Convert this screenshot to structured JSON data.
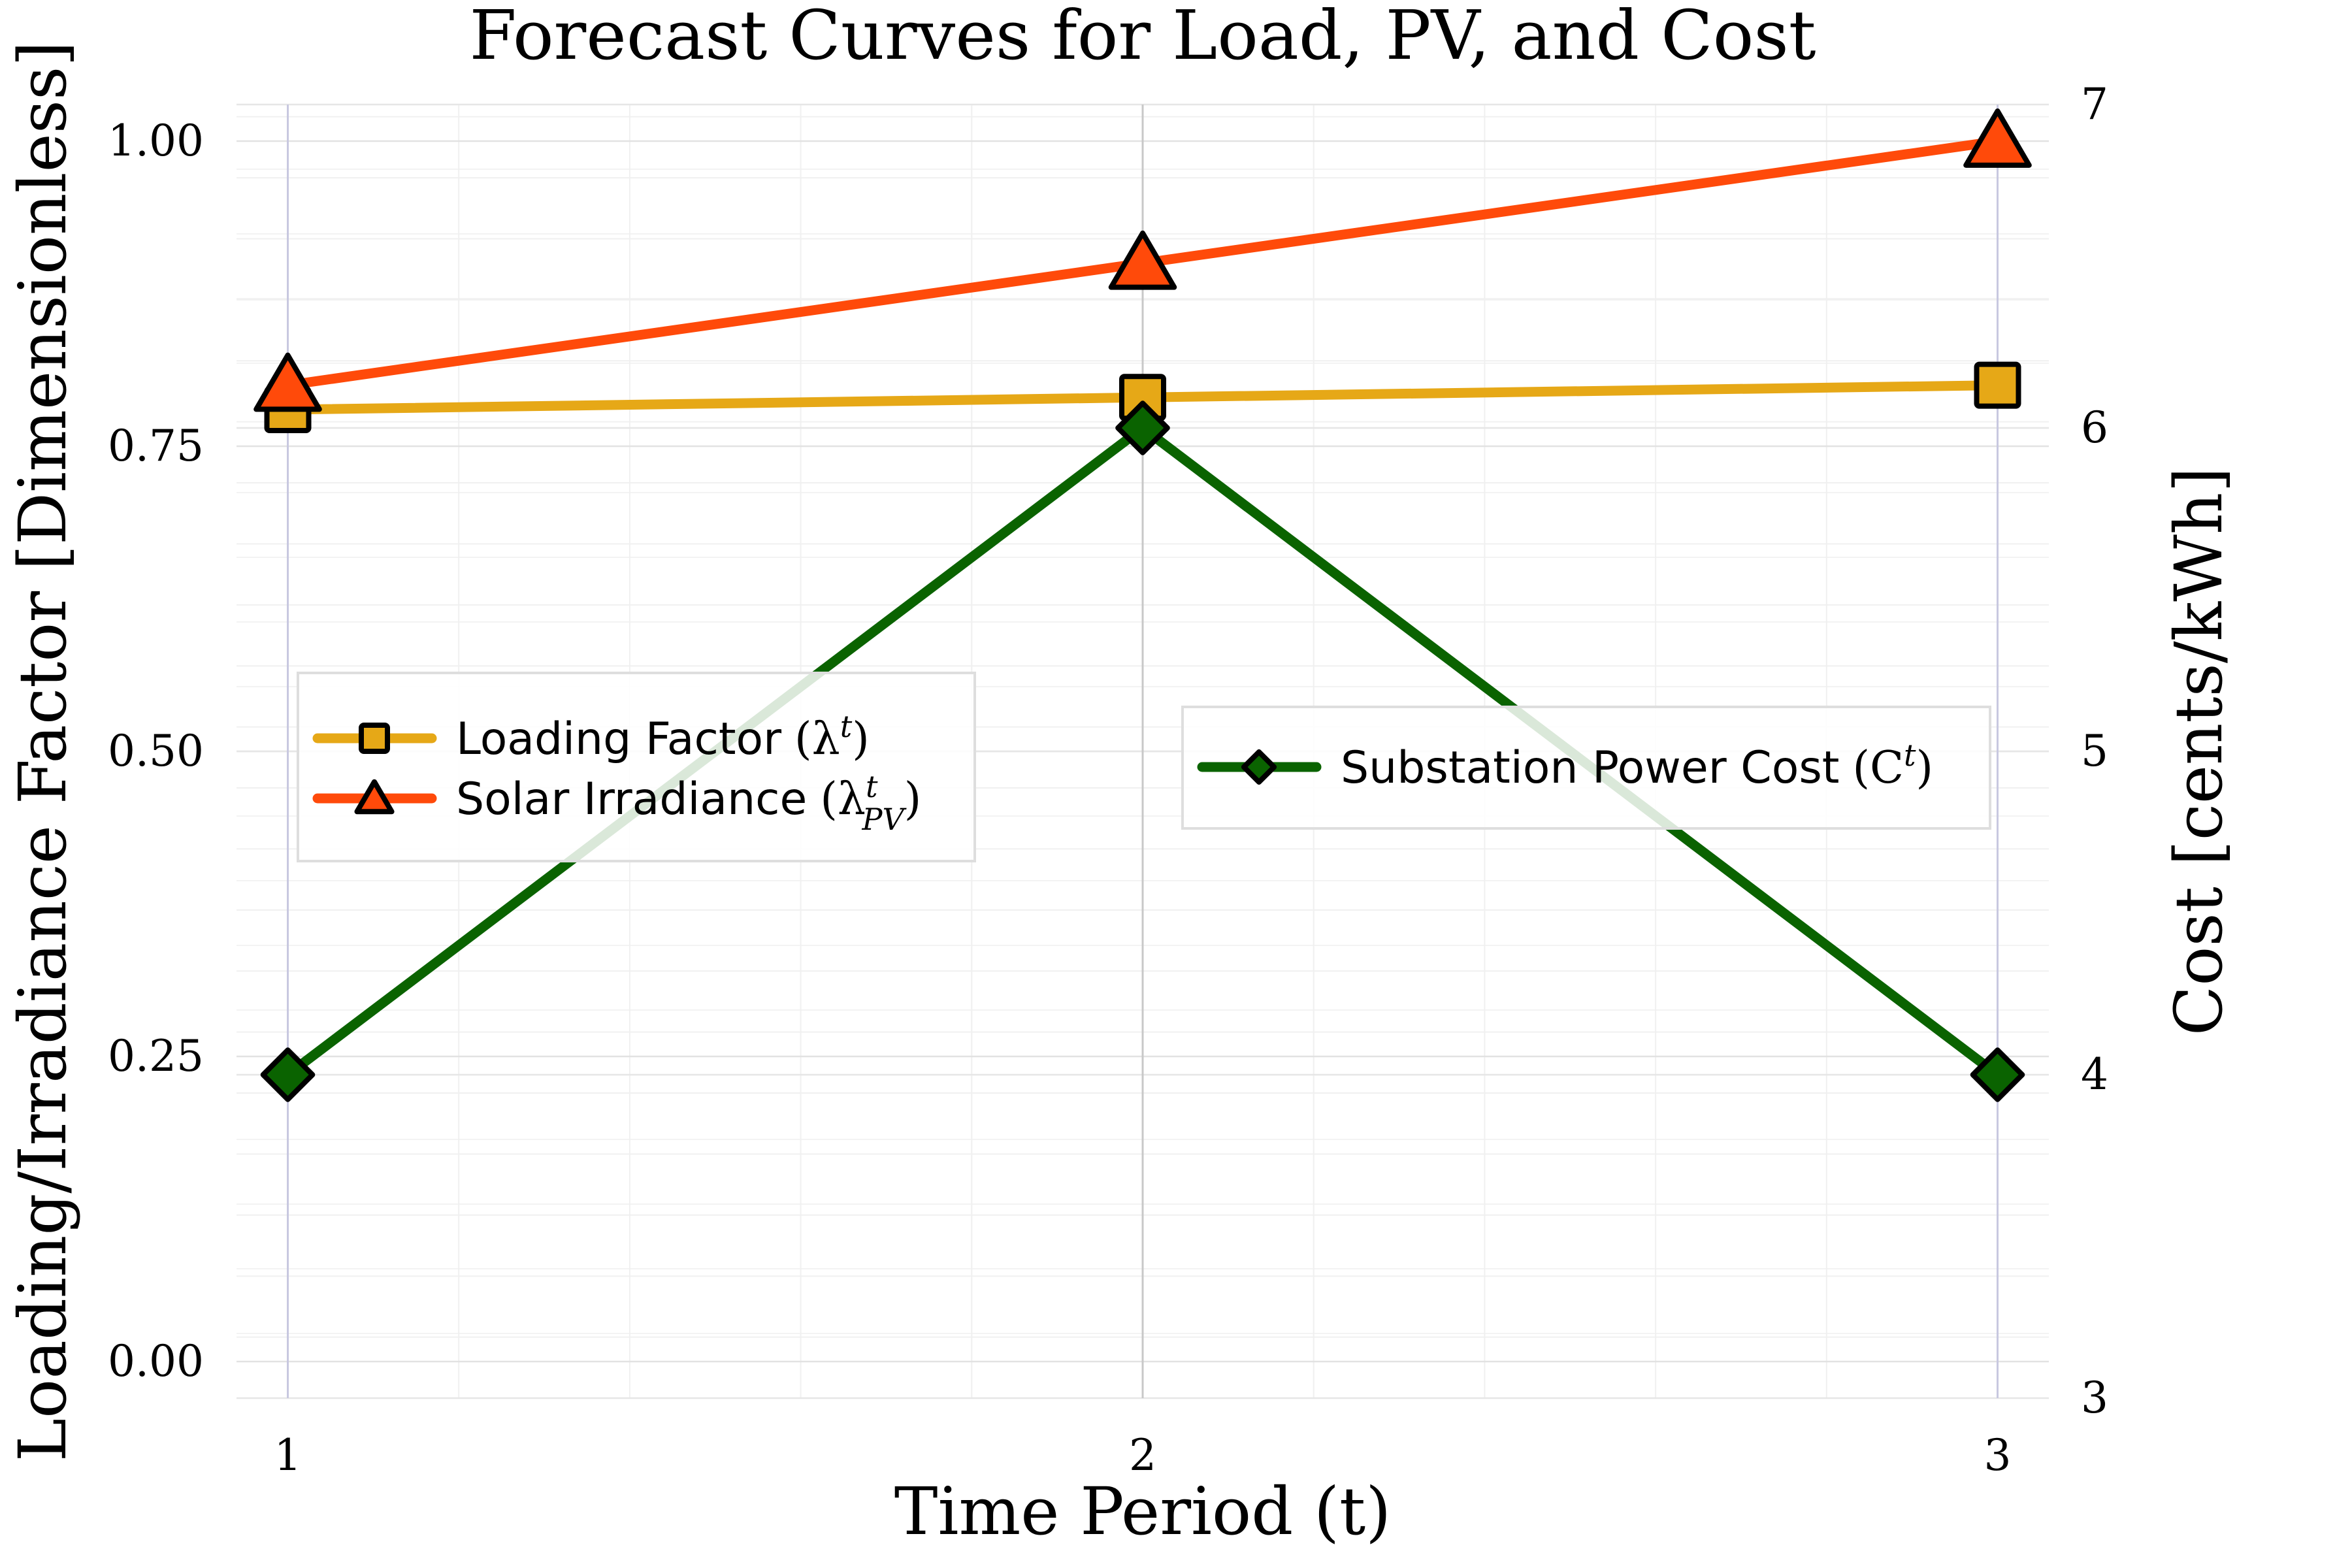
{
  "chart_data": {
    "type": "line",
    "title": "Forecast Curves for Load, PV, and Cost",
    "xlabel": "Time Period (t)",
    "ylabel": "Loading/Irradiance Factor [Dimensionless]",
    "y2label": "Cost [cents/kWh]",
    "x": [
      1,
      2,
      3
    ],
    "xticks": [
      "1",
      "2",
      "3"
    ],
    "xlim": [
      0.94,
      3.06
    ],
    "ylim": [
      -0.03,
      1.03
    ],
    "yticks": [
      "0.00",
      "0.25",
      "0.50",
      "0.75",
      "1.00"
    ],
    "y2lim": [
      3,
      7
    ],
    "y2ticks": [
      "3",
      "4",
      "5",
      "6",
      "7"
    ],
    "grid": true,
    "series": [
      {
        "name": "Loading Factor",
        "symbol": "(λ^t)",
        "axis": "left",
        "marker": "square",
        "color": "#E6A817",
        "values": [
          0.78,
          0.79,
          0.8
        ]
      },
      {
        "name": "Solar Irradiance",
        "symbol": "(λ_PV^t)",
        "axis": "left",
        "marker": "triangle",
        "color": "#FF4A0A",
        "values": [
          0.8,
          0.9,
          1.0
        ]
      },
      {
        "name": "Substation Power Cost",
        "symbol": "(C^t)",
        "axis": "right",
        "marker": "diamond",
        "color": "#0A6300",
        "values": [
          4,
          6,
          4
        ]
      }
    ],
    "legends": [
      {
        "position": "center-left",
        "entries": [
          0,
          1
        ]
      },
      {
        "position": "center-right",
        "entries": [
          2
        ]
      }
    ]
  }
}
